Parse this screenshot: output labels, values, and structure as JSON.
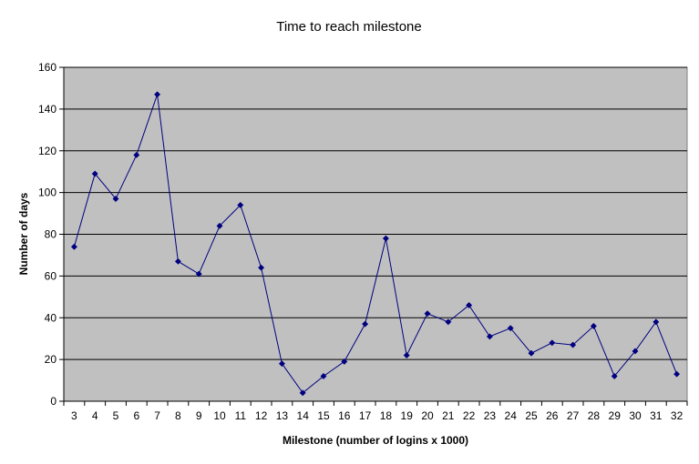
{
  "chart_data": {
    "type": "line",
    "title": "Time to reach milestone",
    "xlabel": "Milestone (number of logins x 1000)",
    "ylabel": "Number of days",
    "ylim": [
      0,
      160
    ],
    "yticks": [
      0,
      20,
      40,
      60,
      80,
      100,
      120,
      140,
      160
    ],
    "grid": true,
    "legend": "none",
    "colors": {
      "plot_bg": "#C0C0C0",
      "line": "#000080",
      "gridline": "#000000"
    },
    "categories": [
      "3",
      "4",
      "5",
      "6",
      "7",
      "8",
      "9",
      "10",
      "11",
      "12",
      "13",
      "14",
      "15",
      "16",
      "17",
      "18",
      "19",
      "20",
      "21",
      "22",
      "23",
      "24",
      "25",
      "26",
      "27",
      "28",
      "29",
      "30",
      "31",
      "32"
    ],
    "series": [
      {
        "values": [
          74,
          109,
          97,
          118,
          147,
          67,
          61,
          84,
          94,
          64,
          18,
          4,
          12,
          19,
          37,
          78,
          22,
          42,
          38,
          46,
          31,
          35,
          23,
          28,
          27,
          36,
          12,
          24,
          38,
          13
        ]
      }
    ]
  }
}
